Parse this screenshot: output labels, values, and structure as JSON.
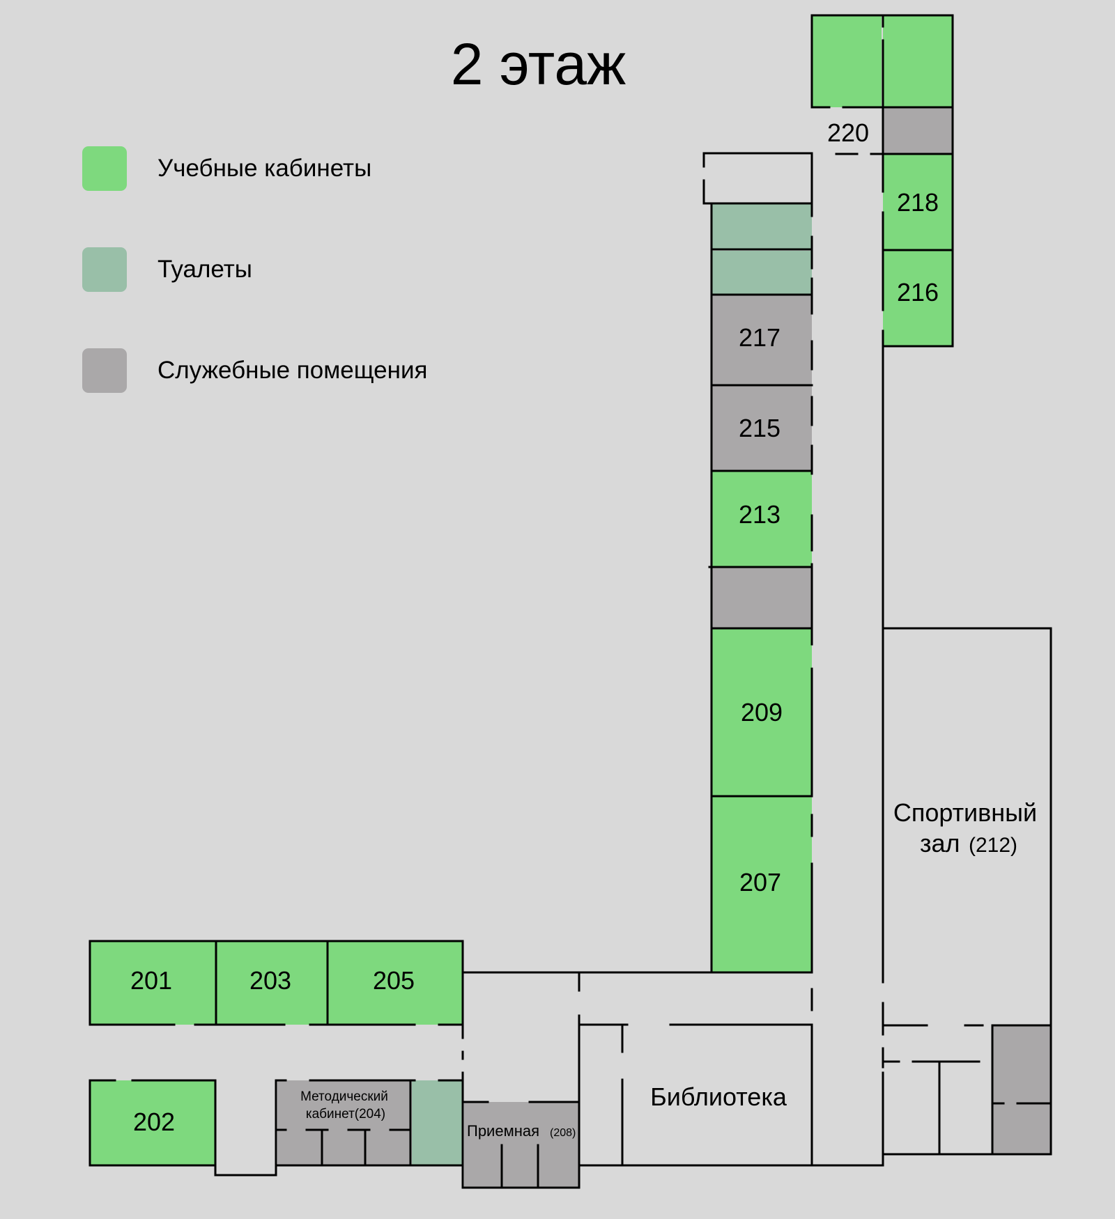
{
  "title": "2 этаж",
  "colors": {
    "background": "#d9d9d9",
    "classroom": "#7ed97e",
    "toilet": "#99bfa8",
    "service": "#aaa8a9",
    "wall": "#000000"
  },
  "legend": [
    {
      "label": "Учебные кабинеты",
      "color": "#7ed97e"
    },
    {
      "label": "Туалеты",
      "color": "#99bfa8"
    },
    {
      "label": "Служебные помещения",
      "color": "#aaa8a9"
    }
  ],
  "rooms": {
    "r201": "201",
    "r202": "202",
    "r203": "203",
    "r205": "205",
    "r207": "207",
    "r209": "209",
    "r213": "213",
    "r215": "215",
    "r216": "216",
    "r217": "217",
    "r218": "218",
    "r220": "220",
    "methodical_line1": "Методический",
    "methodical_line2": "кабинет(204)",
    "reception": "Приемная",
    "reception_num": "(208)",
    "library": "Библиотека",
    "gym_line1": "Спортивный",
    "gym_line2_word": "зал",
    "gym_line2_num": "(212)"
  }
}
